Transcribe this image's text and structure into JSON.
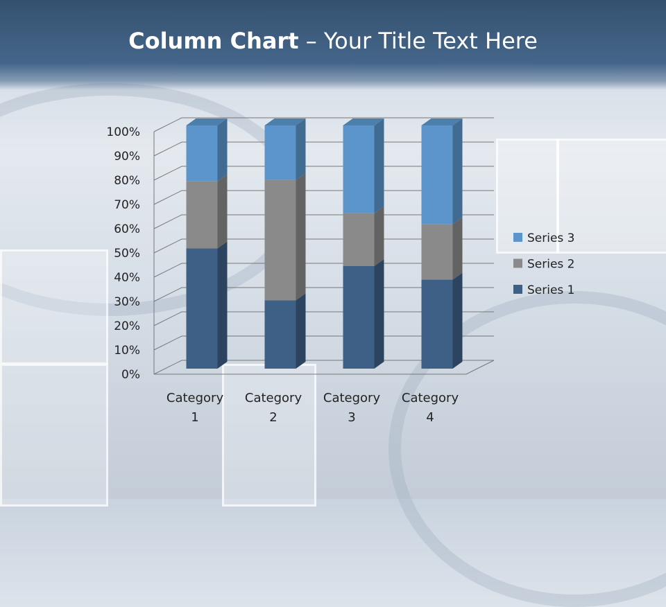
{
  "slide": {
    "title_bold": "Column Chart",
    "title_rest": " – Your Title Text Here"
  },
  "chart_data": {
    "type": "bar",
    "stacking": "percent",
    "three_d": true,
    "categories": [
      "Category 1",
      "Category 2",
      "Category 3",
      "Category 4"
    ],
    "series": [
      {
        "name": "Series 1",
        "values": [
          4.3,
          2.5,
          3.5,
          4.5
        ],
        "color": "#3e5f86"
      },
      {
        "name": "Series 2",
        "values": [
          2.4,
          4.4,
          1.8,
          2.8
        ],
        "color": "#8a8a8a"
      },
      {
        "name": "Series 3",
        "values": [
          2,
          2,
          3,
          5
        ],
        "color": "#5b95cb"
      }
    ],
    "yticks": [
      "0%",
      "10%",
      "20%",
      "30%",
      "40%",
      "50%",
      "60%",
      "70%",
      "80%",
      "90%",
      "100%"
    ],
    "ylim": [
      0,
      100
    ],
    "grid": true,
    "legend": "right"
  }
}
